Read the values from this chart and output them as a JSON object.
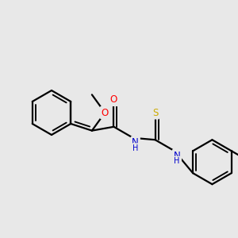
{
  "bg_color": "#e8e8e8",
  "bond_color": "#000000",
  "bond_width": 1.6,
  "atom_colors": {
    "O": "#ff0000",
    "N": "#0000cc",
    "S": "#ccaa00",
    "C": "#000000"
  },
  "font_size": 8.5,
  "fig_size": [
    3.0,
    3.0
  ],
  "dpi": 100
}
